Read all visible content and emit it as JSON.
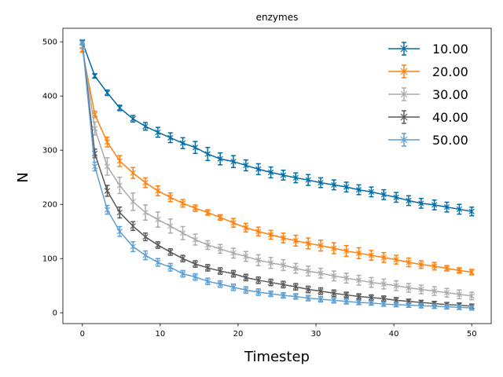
{
  "chart_data": {
    "type": "line",
    "title": "enzymes",
    "xlabel": "Timestep",
    "ylabel": "N",
    "xlim": [
      -2.5,
      52.5
    ],
    "ylim": [
      -20,
      525
    ],
    "xticks": [
      0,
      10,
      20,
      30,
      40,
      50
    ],
    "yticks": [
      0,
      100,
      200,
      300,
      400,
      500
    ],
    "grid": false,
    "legend_position": "upper right",
    "x": [
      0,
      1.6,
      3.2,
      4.8,
      6.5,
      8.1,
      9.7,
      11.3,
      12.9,
      14.5,
      16.1,
      17.7,
      19.4,
      21.0,
      22.6,
      24.2,
      25.8,
      27.4,
      29.0,
      30.6,
      32.3,
      33.9,
      35.5,
      37.1,
      38.7,
      40.3,
      41.9,
      43.5,
      45.2,
      46.8,
      48.4,
      50.0
    ],
    "series": [
      {
        "name": "10.00",
        "color": "#006BA4",
        "values": [
          500,
          437,
          406,
          378,
          358,
          344,
          333,
          323,
          313,
          305,
          293,
          284,
          279,
          272,
          265,
          259,
          254,
          249,
          245,
          240,
          236,
          232,
          227,
          223,
          218,
          213,
          207,
          202,
          199,
          195,
          191,
          187
        ],
        "errors": [
          3,
          4,
          5,
          5,
          6,
          7,
          9,
          9,
          10,
          11,
          12,
          11,
          11,
          10,
          10,
          10,
          9,
          9,
          10,
          9,
          9,
          9,
          9,
          9,
          9,
          9,
          9,
          9,
          9,
          9,
          9,
          8
        ]
      },
      {
        "name": "20.00",
        "color": "#FF800E",
        "values": [
          485,
          366,
          315,
          280,
          258,
          240,
          225,
          213,
          202,
          193,
          185,
          176,
          166,
          157,
          150,
          144,
          138,
          133,
          128,
          124,
          119,
          114,
          110,
          106,
          102,
          98,
          93,
          89,
          86,
          82,
          78,
          75
        ],
        "errors": [
          4,
          6,
          9,
          10,
          10,
          9,
          9,
          8,
          7,
          6,
          5,
          5,
          8,
          8,
          8,
          8,
          9,
          10,
          10,
          10,
          10,
          10,
          10,
          9,
          9,
          8,
          8,
          7,
          7,
          5,
          5,
          5
        ]
      },
      {
        "name": "30.00",
        "color": "#ABABAB",
        "values": [
          492,
          340,
          270,
          235,
          205,
          185,
          172,
          160,
          147,
          135,
          125,
          118,
          110,
          104,
          97,
          92,
          88,
          82,
          77,
          73,
          68,
          64,
          60,
          56,
          53,
          50,
          46,
          43,
          40,
          37,
          34,
          31
        ],
        "errors": [
          5,
          12,
          16,
          15,
          16,
          14,
          14,
          13,
          12,
          10,
          8,
          8,
          9,
          9,
          10,
          10,
          10,
          9,
          9,
          9,
          9,
          9,
          9,
          9,
          9,
          9,
          8,
          8,
          8,
          8,
          8,
          7
        ]
      },
      {
        "name": "40.00",
        "color": "#595959",
        "values": [
          498,
          294,
          225,
          185,
          160,
          140,
          125,
          112,
          100,
          90,
          83,
          77,
          72,
          65,
          60,
          56,
          52,
          48,
          43,
          40,
          36,
          33,
          30,
          28,
          26,
          23,
          21,
          19,
          17,
          15,
          14,
          12
        ],
        "errors": [
          3,
          8,
          10,
          10,
          8,
          7,
          6,
          6,
          6,
          6,
          6,
          6,
          6,
          6,
          6,
          6,
          6,
          6,
          6,
          6,
          6,
          5,
          5,
          5,
          5,
          5,
          4,
          4,
          4,
          4,
          4,
          4
        ]
      },
      {
        "name": "50.00",
        "color": "#5F9ED1",
        "values": [
          498,
          270,
          190,
          150,
          122,
          106,
          93,
          84,
          72,
          66,
          58,
          53,
          47,
          42,
          38,
          35,
          32,
          30,
          27,
          25,
          23,
          21,
          19,
          18,
          16,
          15,
          14,
          13,
          12,
          11,
          10,
          9
        ],
        "errors": [
          3,
          8,
          8,
          9,
          9,
          8,
          7,
          7,
          6,
          6,
          6,
          6,
          6,
          6,
          6,
          5,
          5,
          5,
          5,
          5,
          5,
          5,
          4,
          4,
          4,
          4,
          4,
          4,
          4,
          4,
          4,
          4
        ]
      }
    ]
  }
}
